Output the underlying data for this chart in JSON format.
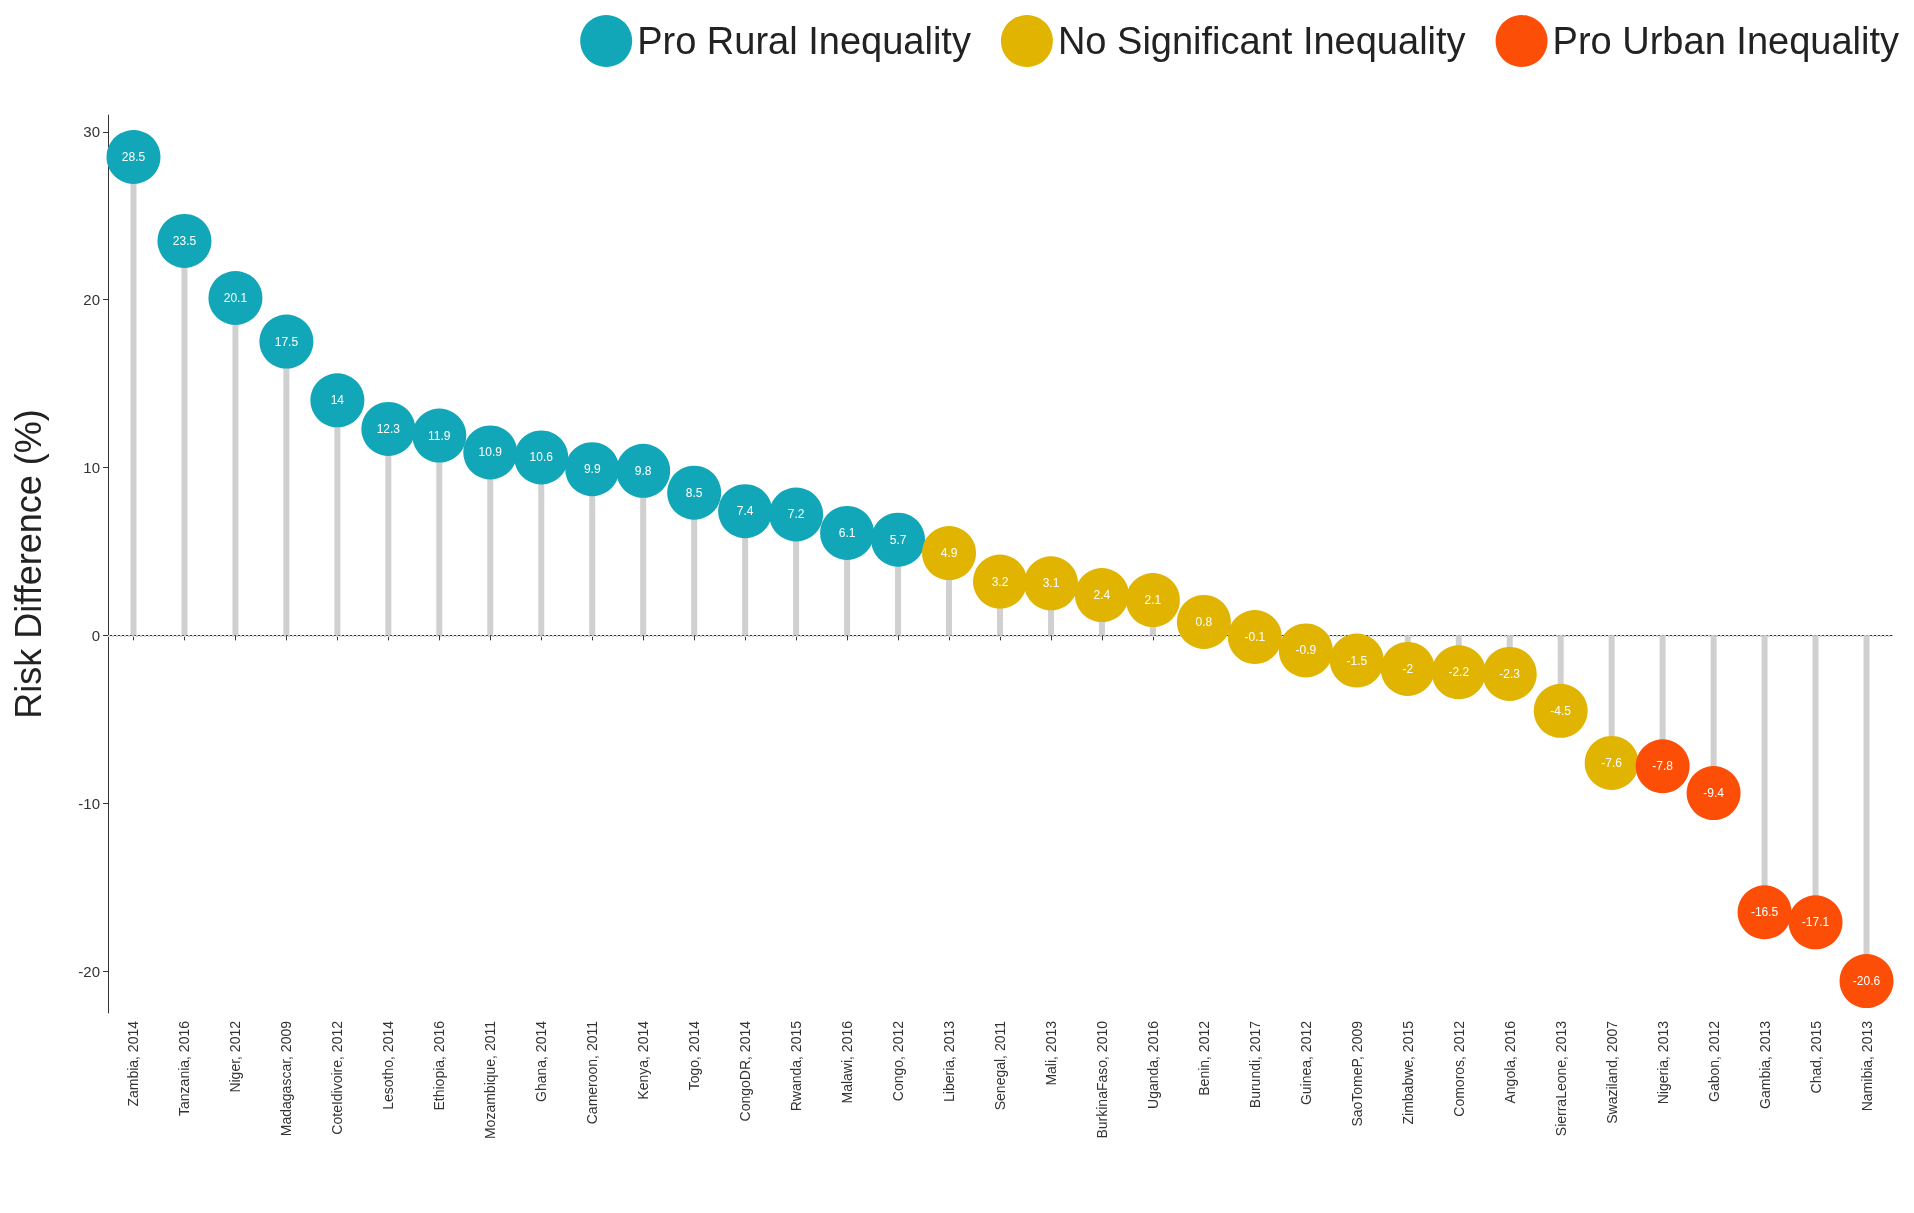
{
  "chart_data": {
    "type": "lollipop",
    "ylabel": "Risk Difference (%)",
    "categories": [
      "Zambia, 2014",
      "Tanzania, 2016",
      "Niger, 2012",
      "Madagascar, 2009",
      "CoteIdivoire, 2012",
      "Lesotho, 2014",
      "Ethiopia, 2016",
      "Mozambique, 2011",
      "Ghana, 2014",
      "Cameroon, 2011",
      "Kenya, 2014",
      "Togo, 2014",
      "CongoDR, 2014",
      "Rwanda, 2015",
      "Malawi, 2016",
      "Congo, 2012",
      "Liberia, 2013",
      "Senegal, 2011",
      "Mali, 2013",
      "BurkinaFaso, 2010",
      "Uganda, 2016",
      "Benin, 2012",
      "Burundi, 2017",
      "Guinea, 2012",
      "SaoTomeP, 2009",
      "Zimbabwe, 2015",
      "Comoros, 2012",
      "Angola, 2016",
      "SierraLeone, 2013",
      "Swaziland, 2007",
      "Nigeria, 2013",
      "Gabon, 2012",
      "Gambia, 2013",
      "Chad, 2015",
      "Namibia, 2013"
    ],
    "series": [
      {
        "name": "Pro Rural Inequality",
        "color": "#12a7b8",
        "values": [
          28.5,
          23.5,
          20.1,
          17.5,
          14,
          12.3,
          11.9,
          10.9,
          10.6,
          9.9,
          9.8,
          8.5,
          7.4,
          7.2,
          6.1,
          5.7,
          null,
          null,
          null,
          null,
          null,
          null,
          null,
          null,
          null,
          null,
          null,
          null,
          null,
          null,
          null,
          null,
          null,
          null,
          null
        ]
      },
      {
        "name": "No Significant Inequality",
        "color": "#e0b400",
        "values": [
          null,
          null,
          null,
          null,
          null,
          null,
          null,
          null,
          null,
          null,
          null,
          null,
          null,
          null,
          null,
          null,
          4.9,
          3.2,
          3.1,
          2.4,
          2.1,
          0.8,
          -0.1,
          -0.9,
          -1.5,
          -2,
          -2.2,
          -2.3,
          -4.5,
          -7.6,
          null,
          null,
          null,
          null,
          null
        ]
      },
      {
        "name": "Pro Urban Inequality",
        "color": "#fc4e07",
        "values": [
          null,
          null,
          null,
          null,
          null,
          null,
          null,
          null,
          null,
          null,
          null,
          null,
          null,
          null,
          null,
          null,
          null,
          null,
          null,
          null,
          null,
          null,
          null,
          null,
          null,
          null,
          null,
          null,
          null,
          null,
          -7.8,
          -9.4,
          -16.5,
          -17.1,
          -20.6
        ]
      }
    ],
    "ylim": [
      -22.5,
      31
    ],
    "yticks": [
      -20,
      -10,
      0,
      10,
      20,
      30
    ],
    "ref_lines": [
      {
        "axis": "y",
        "value": 0,
        "label": null,
        "color": "#cccccc",
        "line_style": "dotted"
      }
    ],
    "data_labels": true,
    "legend": "top right",
    "grid": false,
    "marker": "circle"
  }
}
